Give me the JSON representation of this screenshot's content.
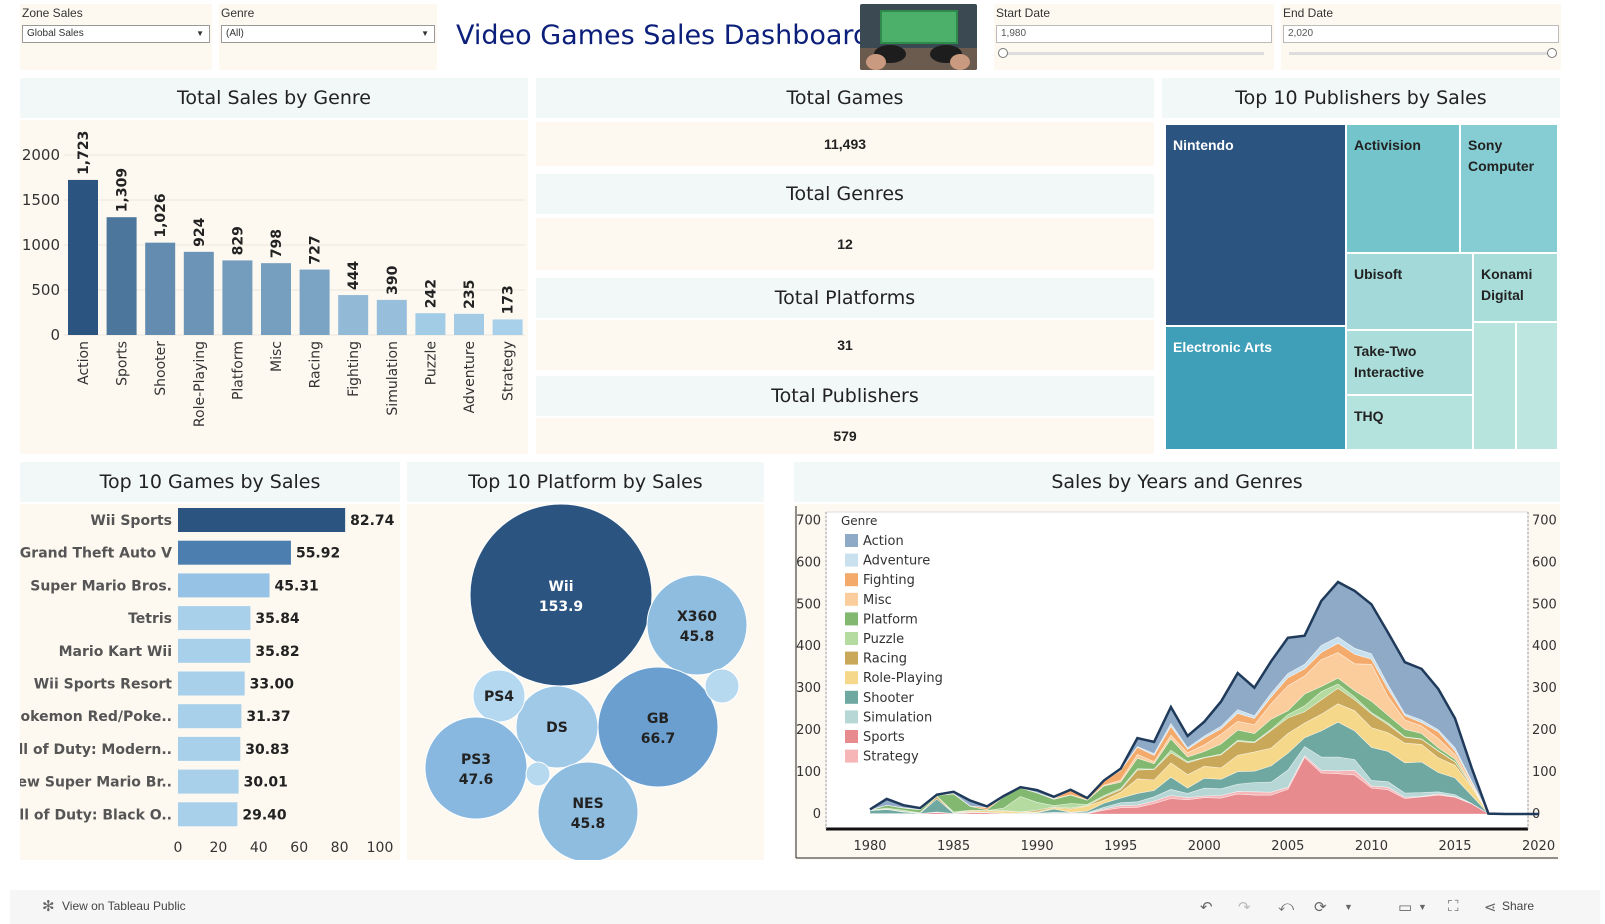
{
  "title": "Video Games Sales Dashboard",
  "filters": {
    "zone": {
      "label": "Zone Sales",
      "value": "Global Sales"
    },
    "genre": {
      "label": "Genre",
      "value": "(All)"
    },
    "start": {
      "label": "Start Date",
      "value": "1,980"
    },
    "end": {
      "label": "End Date",
      "value": "2,020"
    }
  },
  "kpis": [
    {
      "label": "Total Games",
      "value": "11,493"
    },
    {
      "label": "Total Genres",
      "value": "12"
    },
    {
      "label": "Total Platforms",
      "value": "31"
    },
    {
      "label": "Total Publishers",
      "value": "579"
    }
  ],
  "publishers": {
    "title": "Top 10 Publishers by Sales",
    "cells": [
      "Nintendo",
      "Activision",
      "Sony Computer",
      "Ubisoft",
      "Konami Digital",
      "Electronic Arts",
      "Take-Two Interactive",
      "THQ"
    ]
  },
  "footer": {
    "tableau": "View on Tableau Public",
    "share": "Share"
  },
  "colors": {
    "dark": "#2b5580",
    "mid": "#4c7fb0",
    "light": "#a8d0ea",
    "panel": "#fdf9f1",
    "header": "#f2f7f7"
  },
  "chart_data": [
    {
      "type": "bar",
      "title": "Total Sales by Genre",
      "categories": [
        "Action",
        "Sports",
        "Shooter",
        "Role-Playing",
        "Platform",
        "Misc",
        "Racing",
        "Fighting",
        "Simulation",
        "Puzzle",
        "Adventure",
        "Strategy"
      ],
      "values": [
        1723,
        1309,
        1026,
        924,
        829,
        798,
        727,
        444,
        390,
        242,
        235,
        173
      ],
      "labels": [
        "1,723",
        "1,309",
        "1,026",
        "924",
        "829",
        "798",
        "727",
        "444",
        "390",
        "242",
        "235",
        "173"
      ],
      "yticks": [
        "0",
        "500",
        "1000",
        "1500",
        "2000"
      ],
      "ylim": [
        0,
        2300
      ]
    },
    {
      "type": "bar",
      "title": "Top 10 Games by Sales",
      "categories": [
        "Wii Sports",
        "Grand Theft Auto V",
        "Super Mario Bros.",
        "Tetris",
        "Mario Kart Wii",
        "Wii Sports Resort",
        "Pokemon Red/Poke..",
        "Call of Duty: Modern..",
        "New Super Mario Br..",
        "Call of Duty: Black O.."
      ],
      "values": [
        82.74,
        55.92,
        45.31,
        35.84,
        35.82,
        33.0,
        31.37,
        30.83,
        30.01,
        29.4
      ],
      "labels": [
        "82.74",
        "55.92",
        "45.31",
        "35.84",
        "35.82",
        "33.00",
        "31.37",
        "30.83",
        "30.01",
        "29.40"
      ],
      "xticks": [
        "0",
        "20",
        "40",
        "60",
        "80",
        "100"
      ],
      "xlim": [
        0,
        100
      ]
    },
    {
      "type": "bubble",
      "title": "Top 10 Platform by Sales",
      "bubbles": [
        {
          "name": "Wii",
          "label": "153.9"
        },
        {
          "name": "X360",
          "label": "45.8"
        },
        {
          "name": "GB",
          "label": "66.7"
        },
        {
          "name": "DS",
          "label": ""
        },
        {
          "name": "PS4",
          "label": ""
        },
        {
          "name": "PS3",
          "label": "47.6"
        },
        {
          "name": "NES",
          "label": "45.8"
        },
        {
          "name": "",
          "label": ""
        },
        {
          "name": "",
          "label": ""
        }
      ]
    },
    {
      "type": "area",
      "title": "Sales by Years and Genres",
      "legend_title": "Genre",
      "legend_position": "top-left",
      "x": [
        1980,
        1981,
        1982,
        1983,
        1984,
        1985,
        1986,
        1987,
        1988,
        1989,
        1990,
        1991,
        1992,
        1993,
        1994,
        1995,
        1996,
        1997,
        1998,
        1999,
        2000,
        2001,
        2002,
        2003,
        2004,
        2005,
        2006,
        2007,
        2008,
        2009,
        2010,
        2011,
        2012,
        2013,
        2014,
        2015,
        2016,
        2017,
        2018,
        2019,
        2020
      ],
      "xticks": [
        "1980",
        "1985",
        "1990",
        "1995",
        "2000",
        "2005",
        "2010",
        "2015",
        "2020"
      ],
      "yticks": [
        "0",
        "100",
        "200",
        "300",
        "400",
        "500",
        "600",
        "700"
      ],
      "ylim": [
        0,
        720
      ],
      "series": [
        {
          "name": "Sports",
          "color": "#e88b8f",
          "values": [
            1,
            1,
            1,
            1,
            4,
            1,
            3,
            3,
            1,
            1,
            1,
            1,
            1,
            1,
            9,
            15,
            16,
            25,
            37,
            34,
            39,
            38,
            48,
            45,
            45,
            59,
            135,
            98,
            96,
            93,
            62,
            58,
            37,
            41,
            45,
            40,
            24,
            1,
            0,
            0,
            0
          ]
        },
        {
          "name": "Strategy",
          "color": "#f6b6b8",
          "values": [
            0,
            0,
            0,
            0,
            0,
            0,
            0,
            0,
            0,
            0,
            0,
            1,
            1,
            1,
            3,
            5,
            5,
            6,
            7,
            5,
            4,
            6,
            6,
            8,
            7,
            5,
            4,
            6,
            7,
            11,
            5,
            6,
            3,
            1,
            3,
            1,
            1,
            0,
            0,
            0,
            0
          ]
        },
        {
          "name": "Simulation",
          "color": "#b7d7d6",
          "values": [
            0,
            0,
            0,
            0,
            1,
            0,
            0,
            0,
            0,
            0,
            1,
            2,
            1,
            1,
            4,
            7,
            8,
            10,
            15,
            10,
            19,
            16,
            17,
            22,
            24,
            41,
            22,
            32,
            33,
            26,
            13,
            13,
            10,
            9,
            5,
            5,
            0,
            0,
            0,
            0,
            0
          ]
        },
        {
          "name": "Shooter",
          "color": "#6fa7a1",
          "values": [
            7,
            10,
            4,
            1,
            31,
            1,
            1,
            1,
            1,
            1,
            1,
            8,
            1,
            4,
            10,
            11,
            20,
            15,
            29,
            13,
            23,
            23,
            30,
            27,
            39,
            40,
            21,
            62,
            83,
            68,
            79,
            72,
            72,
            73,
            46,
            40,
            19,
            0,
            0,
            0,
            0
          ]
        },
        {
          "name": "Role-Playing",
          "color": "#f6d88a",
          "values": [
            0,
            0,
            0,
            0,
            0,
            0,
            3,
            4,
            5,
            3,
            2,
            3,
            8,
            12,
            7,
            14,
            35,
            25,
            34,
            32,
            29,
            27,
            39,
            46,
            42,
            47,
            35,
            40,
            44,
            48,
            47,
            45,
            47,
            42,
            35,
            30,
            20,
            0,
            0,
            0,
            0
          ]
        },
        {
          "name": "Racing",
          "color": "#c9a85a",
          "values": [
            0,
            1,
            1,
            0,
            6,
            0,
            2,
            0,
            1,
            0,
            4,
            2,
            2,
            1,
            8,
            6,
            21,
            25,
            24,
            28,
            20,
            31,
            33,
            22,
            42,
            37,
            27,
            34,
            37,
            26,
            33,
            19,
            14,
            12,
            16,
            8,
            3,
            0,
            0,
            0,
            0
          ]
        },
        {
          "name": "Puzzle",
          "color": "#b5dba0",
          "values": [
            1,
            2,
            3,
            1,
            1,
            3,
            0,
            0,
            6,
            37,
            19,
            3,
            11,
            3,
            3,
            3,
            3,
            1,
            6,
            3,
            1,
            2,
            3,
            2,
            3,
            8,
            14,
            20,
            10,
            7,
            3,
            4,
            1,
            1,
            1,
            1,
            0,
            0,
            0,
            0,
            0
          ]
        },
        {
          "name": "Platform",
          "color": "#82b870",
          "values": [
            0,
            7,
            5,
            7,
            1,
            43,
            9,
            2,
            27,
            20,
            22,
            15,
            20,
            10,
            23,
            15,
            25,
            13,
            27,
            11,
            14,
            24,
            24,
            20,
            24,
            9,
            28,
            12,
            14,
            15,
            27,
            18,
            18,
            13,
            7,
            6,
            2,
            0,
            0,
            0,
            0
          ]
        },
        {
          "name": "Misc",
          "color": "#fbcd9d",
          "values": [
            1,
            0,
            1,
            1,
            1,
            0,
            0,
            0,
            0,
            1,
            1,
            1,
            1,
            1,
            2,
            5,
            9,
            5,
            9,
            10,
            16,
            23,
            21,
            21,
            37,
            60,
            43,
            64,
            61,
            64,
            88,
            45,
            22,
            18,
            22,
            11,
            2,
            0,
            0,
            0,
            0
          ]
        },
        {
          "name": "Fighting",
          "color": "#f4aa6b",
          "values": [
            0,
            0,
            0,
            0,
            0,
            1,
            1,
            5,
            0,
            0,
            0,
            1,
            11,
            2,
            9,
            23,
            17,
            15,
            21,
            8,
            16,
            13,
            19,
            15,
            16,
            19,
            17,
            17,
            22,
            23,
            12,
            18,
            10,
            8,
            16,
            8,
            5,
            0,
            0,
            0,
            0
          ]
        },
        {
          "name": "Adventure",
          "color": "#c9e0ef",
          "values": [
            0,
            0,
            0,
            0,
            0,
            0,
            0,
            1,
            0,
            0,
            0,
            0,
            0,
            0,
            0,
            1,
            2,
            4,
            7,
            4,
            5,
            6,
            9,
            6,
            9,
            10,
            11,
            17,
            15,
            14,
            13,
            10,
            5,
            6,
            5,
            8,
            3,
            0,
            0,
            0,
            0
          ]
        },
        {
          "name": "Action",
          "color": "#8faac6",
          "values": [
            1,
            15,
            6,
            3,
            1,
            4,
            13,
            2,
            2,
            1,
            6,
            4,
            1,
            2,
            2,
            3,
            20,
            28,
            39,
            28,
            34,
            59,
            87,
            67,
            76,
            85,
            68,
            106,
            131,
            137,
            118,
            124,
            123,
            122,
            97,
            70,
            31,
            0,
            0,
            0,
            0
          ]
        }
      ]
    }
  ]
}
